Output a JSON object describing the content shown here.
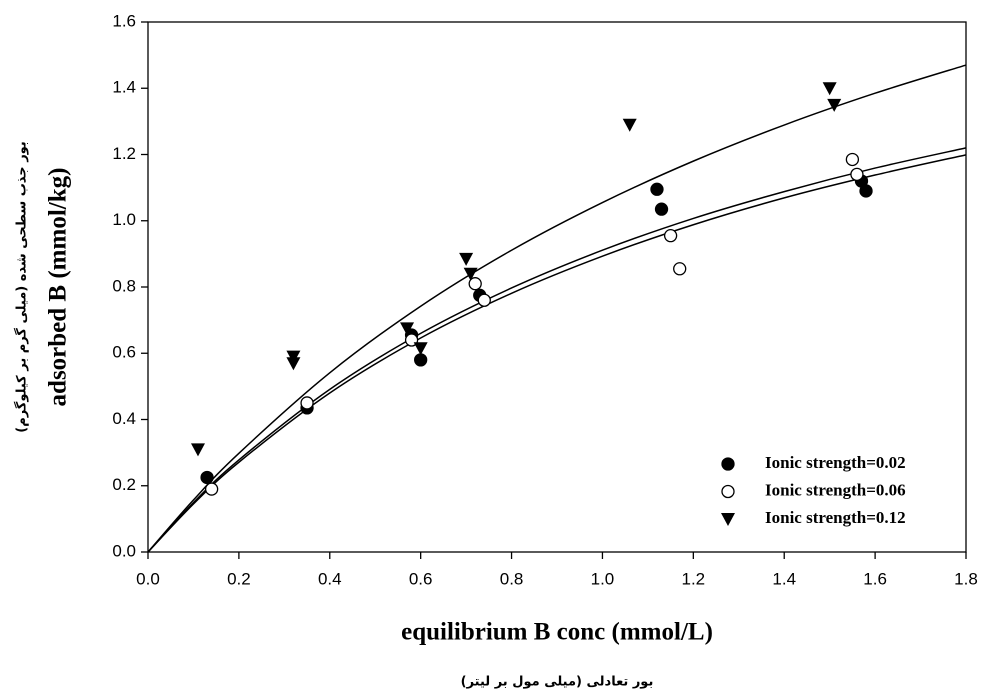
{
  "chart_data": {
    "type": "scatter",
    "x_label": "equilibrium B conc (mmol/L)",
    "x_label_2": "بور تعادلی (میلی مول بر لیتر)",
    "y_label": "adsorbed B (mmol/kg)",
    "y_label_2": "بور جذب سطحی شده (میلی گرم بر کیلوگرم)",
    "xlim": [
      0,
      1.8
    ],
    "ylim": [
      0,
      1.6
    ],
    "xticks": [
      {
        "value": 0,
        "label": "0.0"
      },
      0.2,
      0.4,
      0.6,
      0.8,
      {
        "value": 1,
        "label": "1.0"
      },
      1.2,
      1.4,
      1.6,
      1.8
    ],
    "yticks": [
      {
        "value": 0,
        "label": "0.0"
      },
      0.2,
      0.4,
      0.6,
      0.8,
      {
        "value": 1,
        "label": "1.0"
      },
      1.2,
      1.4,
      1.6
    ],
    "legend": "lower right",
    "series": [
      {
        "name": "Ionic strength=0.02",
        "color": "#000000",
        "marker": "filled-circle",
        "x": [
          0.13,
          0.35,
          0.58,
          0.6,
          0.73,
          1.12,
          1.13,
          1.57,
          1.58
        ],
        "values": [
          0.225,
          0.435,
          0.655,
          0.58,
          0.775,
          1.095,
          1.035,
          1.12,
          1.09
        ],
        "fit": {
          "x": [
            0,
            0.1,
            0.2,
            0.4,
            0.6,
            0.8,
            1.0,
            1.2,
            1.4,
            1.6,
            1.8
          ],
          "values": [
            0,
            0.145,
            0.271,
            0.48,
            0.646,
            0.781,
            0.893,
            0.988,
            1.069,
            1.138,
            1.199
          ]
        }
      },
      {
        "name": "Ionic strength=0.06",
        "color": "#000000",
        "marker": "open-circle",
        "x": [
          0.14,
          0.35,
          0.58,
          0.72,
          0.74,
          1.15,
          1.17,
          1.55,
          1.56
        ],
        "values": [
          0.19,
          0.45,
          0.64,
          0.81,
          0.76,
          0.955,
          0.855,
          1.185,
          1.14
        ],
        "fit": {
          "x": [
            0,
            0.1,
            0.2,
            0.4,
            0.6,
            0.8,
            1.0,
            1.2,
            1.4,
            1.6,
            1.8
          ],
          "values": [
            0,
            0.149,
            0.278,
            0.491,
            0.66,
            0.797,
            0.911,
            1.007,
            1.088,
            1.159,
            1.22
          ]
        }
      },
      {
        "name": "Ionic strength=0.12",
        "color": "#000000",
        "marker": "triangle-down",
        "x": [
          0.11,
          0.32,
          0.32,
          0.57,
          0.6,
          0.7,
          0.71,
          1.06,
          1.5,
          1.51
        ],
        "values": [
          0.31,
          0.59,
          0.57,
          0.675,
          0.615,
          0.885,
          0.84,
          1.29,
          1.4,
          1.35
        ],
        "fit": {
          "x": [
            0,
            0.1,
            0.2,
            0.4,
            0.6,
            0.8,
            1.0,
            1.2,
            1.4,
            1.6,
            1.8
          ],
          "values": [
            0,
            0.157,
            0.298,
            0.541,
            0.742,
            0.911,
            1.055,
            1.18,
            1.289,
            1.385,
            1.47
          ]
        }
      }
    ]
  }
}
